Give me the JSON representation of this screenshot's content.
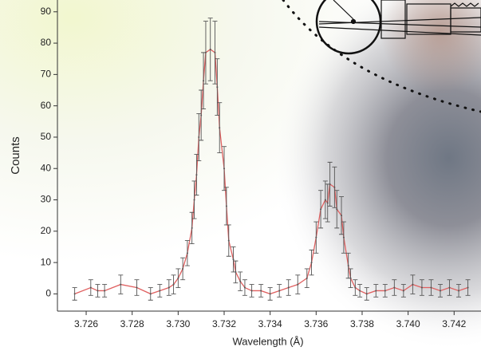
{
  "chart_data": {
    "type": "scatter",
    "x_label": "Wavelength (Å)",
    "y_label": "Counts",
    "xlim": [
      3.72475,
      3.7431
    ],
    "ylim": [
      -5.5,
      93
    ],
    "xticks": [
      3.726,
      3.728,
      {
        "value": 3.73,
        "label": "3.730"
      },
      3.732,
      3.734,
      3.736,
      3.738,
      {
        "value": 3.74,
        "label": "3.740"
      },
      3.742
    ],
    "yticks": [
      0,
      10,
      20,
      30,
      40,
      50,
      60,
      70,
      80,
      90
    ],
    "series": [
      {
        "color": "#555555",
        "line_color": "#e06060",
        "x": [
          3.7255,
          3.7262,
          3.7265,
          3.7268,
          3.7275,
          3.7282,
          3.7288,
          3.7292,
          3.7296,
          3.7298,
          3.73,
          3.7302,
          3.7304,
          3.7306,
          3.7307,
          3.7308,
          3.7309,
          3.731,
          3.7311,
          3.7312,
          3.7314,
          3.7316,
          3.7317,
          3.7318,
          3.732,
          3.7321,
          3.7322,
          3.7324,
          3.7325,
          3.7327,
          3.7329,
          3.7332,
          3.7336,
          3.734,
          3.7344,
          3.7348,
          3.7352,
          3.7356,
          3.7358,
          3.736,
          3.7362,
          3.7364,
          3.7365,
          3.7366,
          3.7368,
          3.7369,
          3.7371,
          3.7372,
          3.7374,
          3.7375,
          3.7377,
          3.7379,
          3.7382,
          3.7386,
          3.739,
          3.7394,
          3.7398,
          3.7402,
          3.7406,
          3.741,
          3.7414,
          3.7418,
          3.7422,
          3.7426
        ],
        "values": [
          0,
          2,
          1,
          1,
          3,
          2,
          0,
          1,
          2,
          3,
          5,
          8,
          13,
          21,
          30,
          38,
          50,
          57,
          68,
          77,
          78,
          77,
          66,
          53,
          40,
          28,
          17,
          11,
          7,
          4,
          2,
          1,
          1,
          0,
          1,
          2,
          3,
          5,
          10,
          18,
          27,
          30,
          29,
          35,
          34,
          27,
          25,
          18,
          9,
          5,
          2,
          1,
          0,
          1,
          1,
          2,
          1,
          3,
          2,
          2,
          1,
          2,
          1,
          2
        ],
        "errors": [
          2,
          2.5,
          2,
          2,
          3,
          2.5,
          2,
          2,
          2.5,
          3,
          3,
          3.5,
          4,
          5,
          6,
          6.5,
          7.5,
          8,
          9,
          10,
          10,
          10,
          9,
          8,
          7,
          6,
          5,
          4,
          3.5,
          3,
          2.5,
          2,
          2,
          2,
          2,
          2.5,
          3,
          3,
          4,
          5,
          6,
          6,
          6,
          7,
          6.5,
          6,
          6,
          5,
          4,
          3,
          2.5,
          2,
          2,
          2,
          2,
          2.5,
          2,
          3,
          2.5,
          2.5,
          2,
          2.5,
          2,
          2.5
        ]
      }
    ]
  }
}
